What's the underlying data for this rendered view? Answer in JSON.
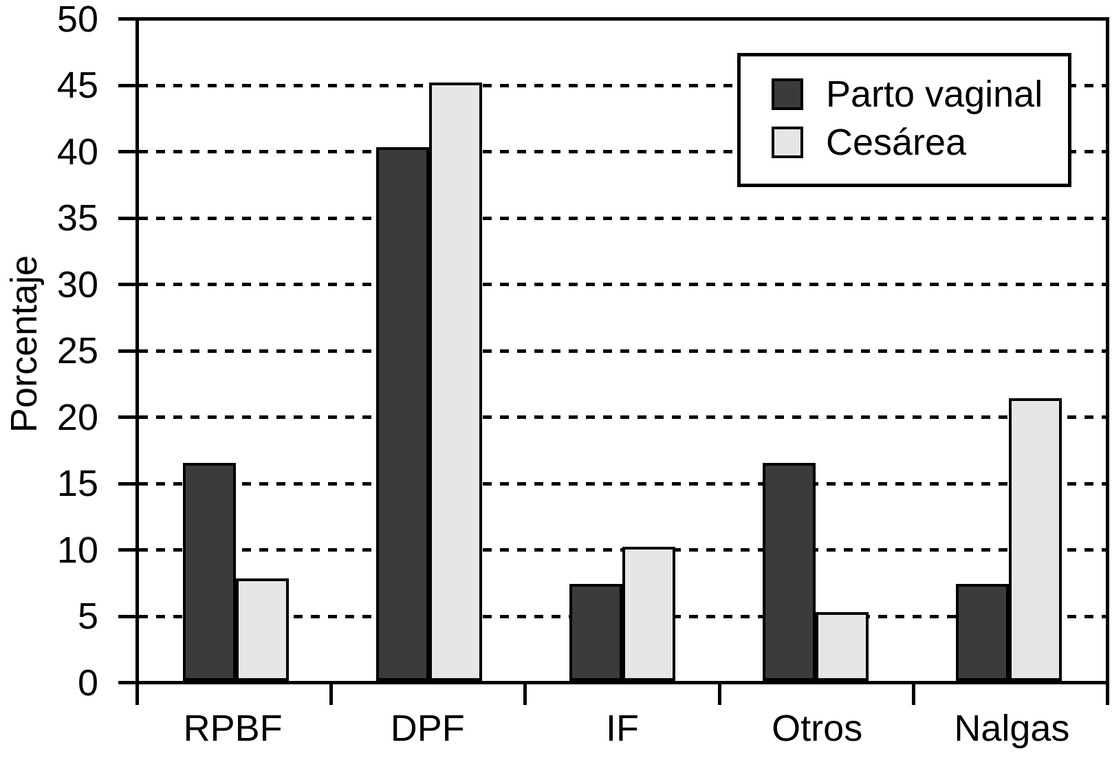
{
  "chart_data": {
    "type": "bar",
    "title": "",
    "ylabel": "Porcentaje",
    "xlabel": "",
    "ylim": [
      0,
      50
    ],
    "yticks": [
      0,
      5,
      10,
      15,
      20,
      25,
      30,
      35,
      40,
      45,
      50
    ],
    "grid": "horizontal-dashed",
    "legend_position": "top-right",
    "categories": [
      "RPBF",
      "DPF",
      "IF",
      "Otros",
      "Nalgas"
    ],
    "series": [
      {
        "name": "Parto vaginal",
        "color": "#3b3b3b",
        "values": [
          16.4,
          40.2,
          7.3,
          16.4,
          7.3
        ]
      },
      {
        "name": "Cesárea",
        "color": "#e6e6e6",
        "values": [
          7.7,
          45.1,
          10.1,
          5.2,
          21.3
        ]
      }
    ],
    "colors": {
      "axis": "#000000",
      "background": "#ffffff",
      "text": "#000000"
    }
  }
}
